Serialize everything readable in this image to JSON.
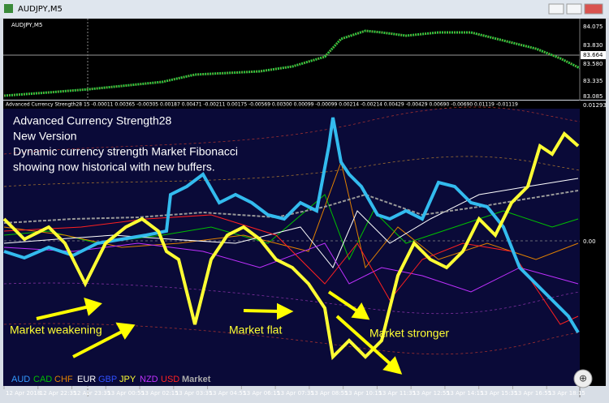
{
  "window": {
    "title": "AUDJPY,M5"
  },
  "price_chart": {
    "symbol": "AUDJPY,M5",
    "price_axis": [
      "84.075",
      "83.830",
      "83.664",
      "83.580",
      "83.335",
      "83.085"
    ]
  },
  "indicator": {
    "header": "Advanced Currency Strength28 15 -0.00011 0.00365 -0.00305 0.00187 0.00471 -0.00211 0.00175 -0.00569 0.00300 0.00099 -0.00099 0.00214 -0.00214 0.00429 -0.00429 0.00690 -0.00690 0.01119 -0.01119",
    "axis": [
      "0.01293",
      "0.00"
    ]
  },
  "overlay": {
    "lines": [
      "Advanced Currency Strength28",
      "New Version",
      "Dynamic currency strength Market Fibonacci",
      "showing now historical with new buffers."
    ]
  },
  "annotations": [
    "Market weakening",
    "Market flat",
    "Market stronger"
  ],
  "legend": [
    {
      "label": "AUD",
      "color": "#3399ff"
    },
    {
      "label": "CAD",
      "color": "#00c000"
    },
    {
      "label": "CHF",
      "color": "#e08000"
    },
    {
      "label": "EUR",
      "color": "#ffffff"
    },
    {
      "label": "GBP",
      "color": "#3050ff"
    },
    {
      "label": "JPY",
      "color": "#ffff33"
    },
    {
      "label": "NZD",
      "color": "#c030ff"
    },
    {
      "label": "USD",
      "color": "#ff2020"
    },
    {
      "label": "Market",
      "color": "#aaaaaa"
    }
  ],
  "time_axis": [
    "12 Apr 2018",
    "12 Apr 22:35",
    "12 Apr 23:35",
    "13 Apr 00:55",
    "13 Apr 02:15",
    "13 Apr 03:35",
    "13 Apr 04:55",
    "13 Apr 06:15",
    "13 Apr 07:35",
    "13 Apr 08:55",
    "13 Apr 10:15",
    "13 Apr 11:35",
    "13 Apr 12:55",
    "13 Apr 14:15",
    "13 Apr 15:35",
    "13 Apr 16:55",
    "13 Apr 18:15"
  ]
}
